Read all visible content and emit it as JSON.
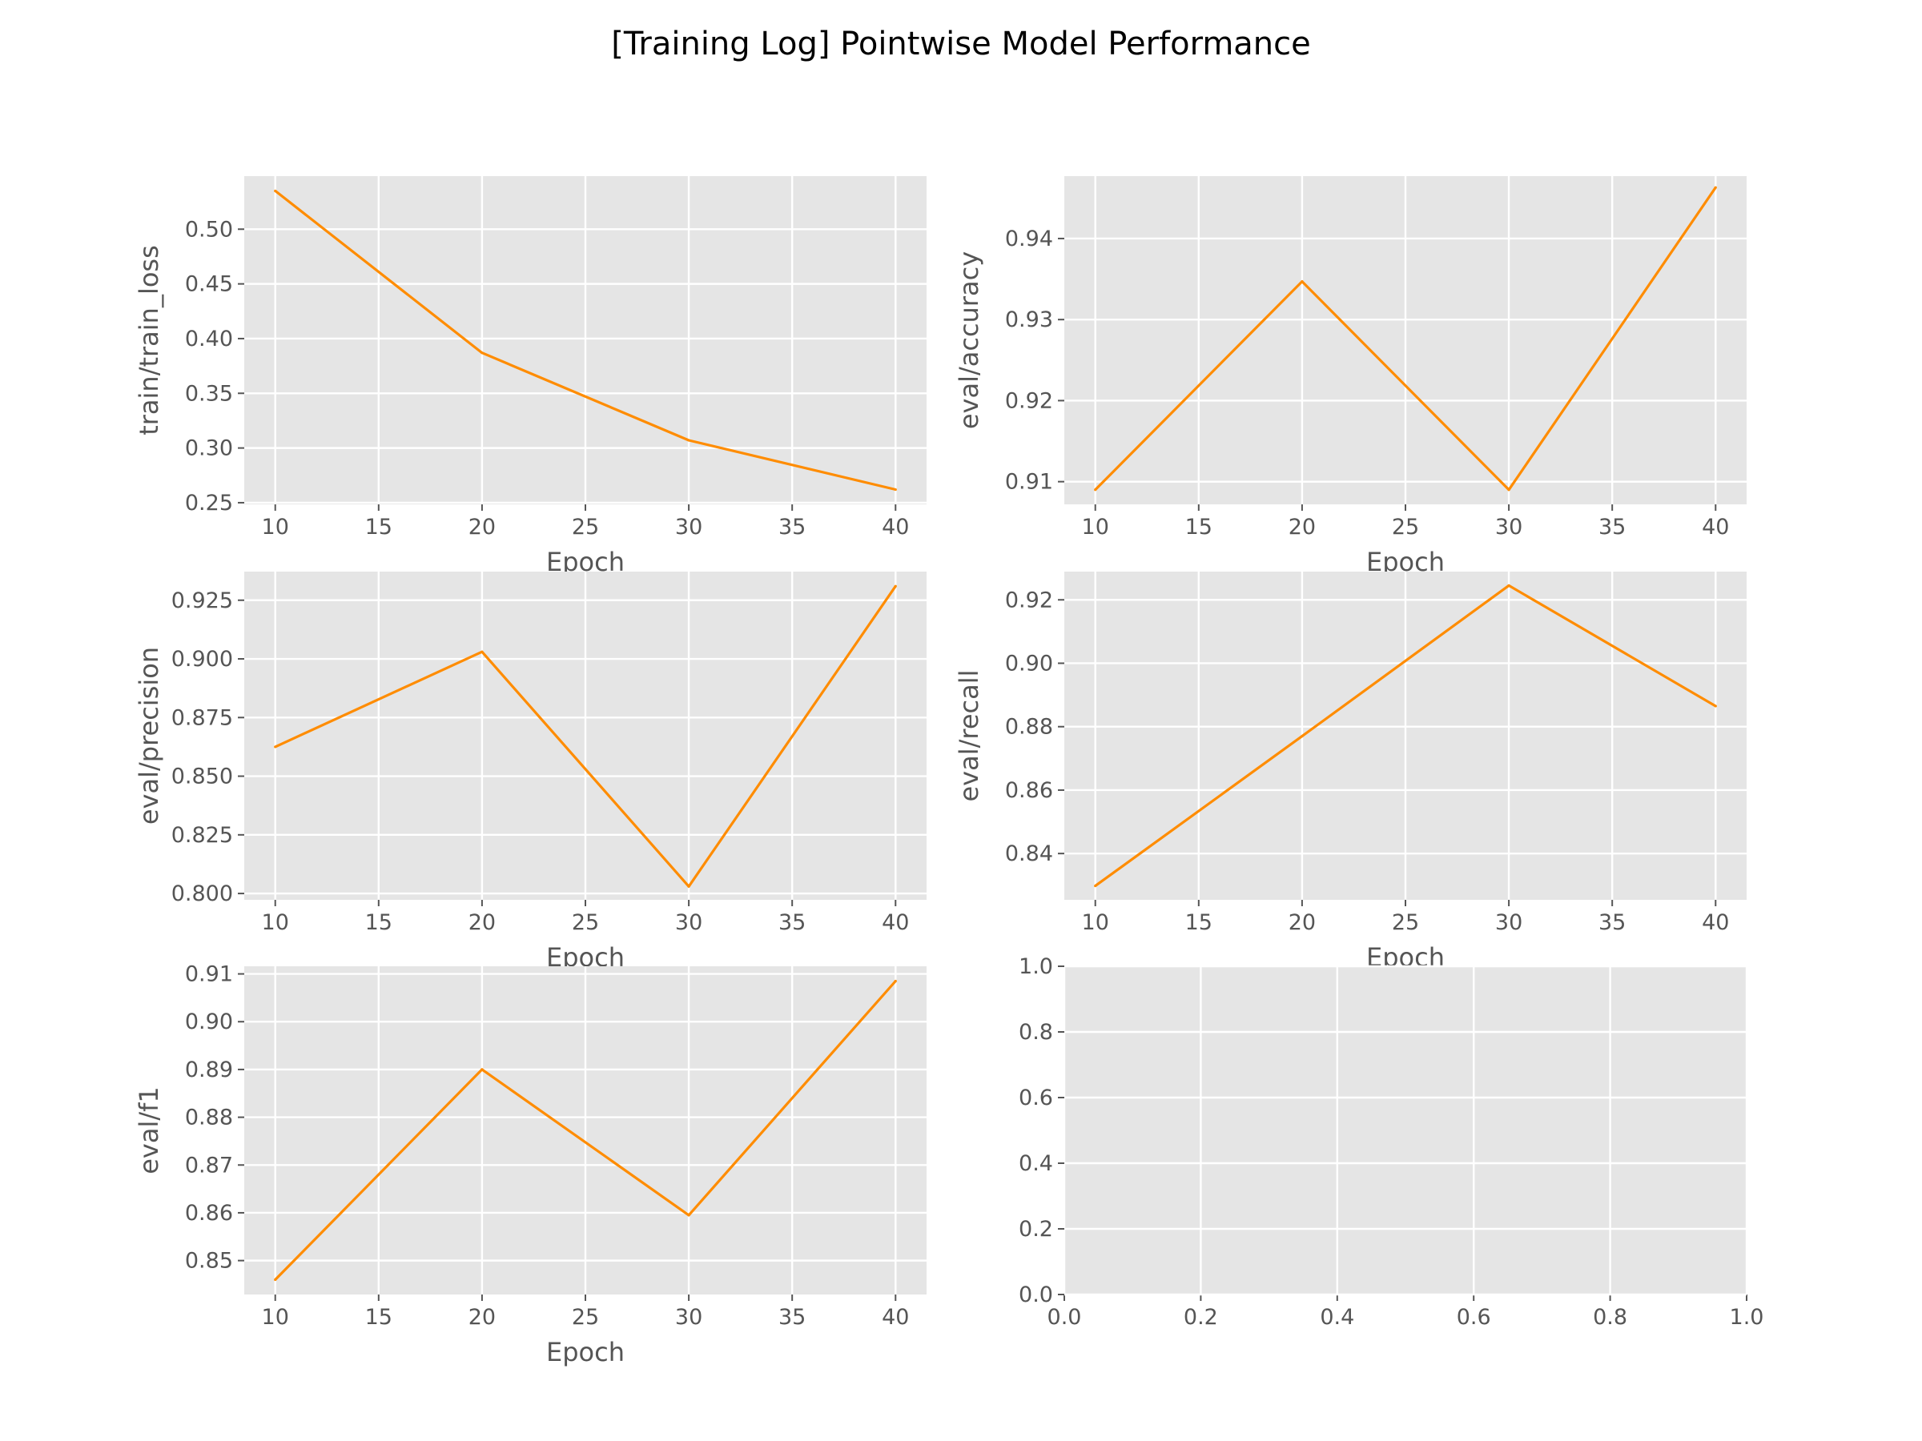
{
  "figure": {
    "title": "[Training Log] Pointwise Model Performance"
  },
  "chart_data": [
    {
      "type": "line",
      "xlabel": "Epoch",
      "ylabel": "train/train_loss",
      "x": [
        10,
        20,
        30,
        40
      ],
      "series": [
        {
          "values": [
            0.535,
            0.387,
            0.307,
            0.262
          ]
        }
      ],
      "xlim": [
        8.5,
        41.5
      ],
      "ylim": [
        0.2485,
        0.5485
      ],
      "xticks": [
        10,
        15,
        20,
        25,
        30,
        35,
        40
      ],
      "yticks": [
        0.25,
        0.3,
        0.35,
        0.4,
        0.45,
        0.5
      ],
      "ytick_labels": [
        "0.25",
        "0.30",
        "0.35",
        "0.40",
        "0.45",
        "0.50"
      ],
      "grid": true
    },
    {
      "type": "line",
      "xlabel": "Epoch",
      "ylabel": "eval/accuracy",
      "x": [
        10,
        20,
        30,
        40
      ],
      "series": [
        {
          "values": [
            0.909,
            0.9347,
            0.909,
            0.9463
          ]
        }
      ],
      "xlim": [
        8.5,
        41.5
      ],
      "ylim": [
        0.9072,
        0.9477
      ],
      "xticks": [
        10,
        15,
        20,
        25,
        30,
        35,
        40
      ],
      "yticks": [
        0.91,
        0.92,
        0.93,
        0.94
      ],
      "ytick_labels": [
        "0.91",
        "0.92",
        "0.93",
        "0.94"
      ],
      "grid": true
    },
    {
      "type": "line",
      "xlabel": "Epoch",
      "ylabel": "eval/precision",
      "x": [
        10,
        20,
        30,
        40
      ],
      "series": [
        {
          "values": [
            0.8625,
            0.903,
            0.803,
            0.931
          ]
        }
      ],
      "xlim": [
        8.5,
        41.5
      ],
      "ylim": [
        0.7973,
        0.9372
      ],
      "xticks": [
        10,
        15,
        20,
        25,
        30,
        35,
        40
      ],
      "yticks": [
        0.8,
        0.825,
        0.85,
        0.875,
        0.9,
        0.925
      ],
      "ytick_labels": [
        "0.800",
        "0.825",
        "0.850",
        "0.875",
        "0.900",
        "0.925"
      ],
      "grid": true
    },
    {
      "type": "line",
      "xlabel": "Epoch",
      "ylabel": "eval/recall",
      "x": [
        10,
        20,
        30,
        40
      ],
      "series": [
        {
          "values": [
            0.8298,
            0.877,
            0.9245,
            0.8865
          ]
        }
      ],
      "xlim": [
        8.5,
        41.5
      ],
      "ylim": [
        0.8254,
        0.9289
      ],
      "xticks": [
        10,
        15,
        20,
        25,
        30,
        35,
        40
      ],
      "yticks": [
        0.84,
        0.86,
        0.88,
        0.9,
        0.92
      ],
      "ytick_labels": [
        "0.84",
        "0.86",
        "0.88",
        "0.90",
        "0.92"
      ],
      "grid": true
    },
    {
      "type": "line",
      "xlabel": "Epoch",
      "ylabel": "eval/f1",
      "x": [
        10,
        20,
        30,
        40
      ],
      "series": [
        {
          "values": [
            0.846,
            0.89,
            0.8595,
            0.9085
          ]
        }
      ],
      "xlim": [
        8.5,
        41.5
      ],
      "ylim": [
        0.8429,
        0.9116
      ],
      "xticks": [
        10,
        15,
        20,
        25,
        30,
        35,
        40
      ],
      "yticks": [
        0.85,
        0.86,
        0.87,
        0.88,
        0.89,
        0.9,
        0.91
      ],
      "ytick_labels": [
        "0.85",
        "0.86",
        "0.87",
        "0.88",
        "0.89",
        "0.90",
        "0.91"
      ],
      "grid": true
    },
    {
      "type": "line",
      "xlabel": "",
      "ylabel": "",
      "x": [],
      "series": [],
      "xlim": [
        0,
        1
      ],
      "ylim": [
        0,
        1
      ],
      "xticks": [
        0,
        0.2,
        0.4,
        0.6,
        0.8,
        1.0
      ],
      "xtick_labels": [
        "0.0",
        "0.2",
        "0.4",
        "0.6",
        "0.8",
        "1.0"
      ],
      "yticks": [
        0,
        0.2,
        0.4,
        0.6,
        0.8,
        1.0
      ],
      "ytick_labels": [
        "0.0",
        "0.2",
        "0.4",
        "0.6",
        "0.8",
        "1.0"
      ],
      "grid": true
    }
  ],
  "colors": {
    "line": "#ff8c00",
    "panel_background": "#e5e5e5",
    "grid": "#ffffff",
    "tick_text": "#555555"
  }
}
